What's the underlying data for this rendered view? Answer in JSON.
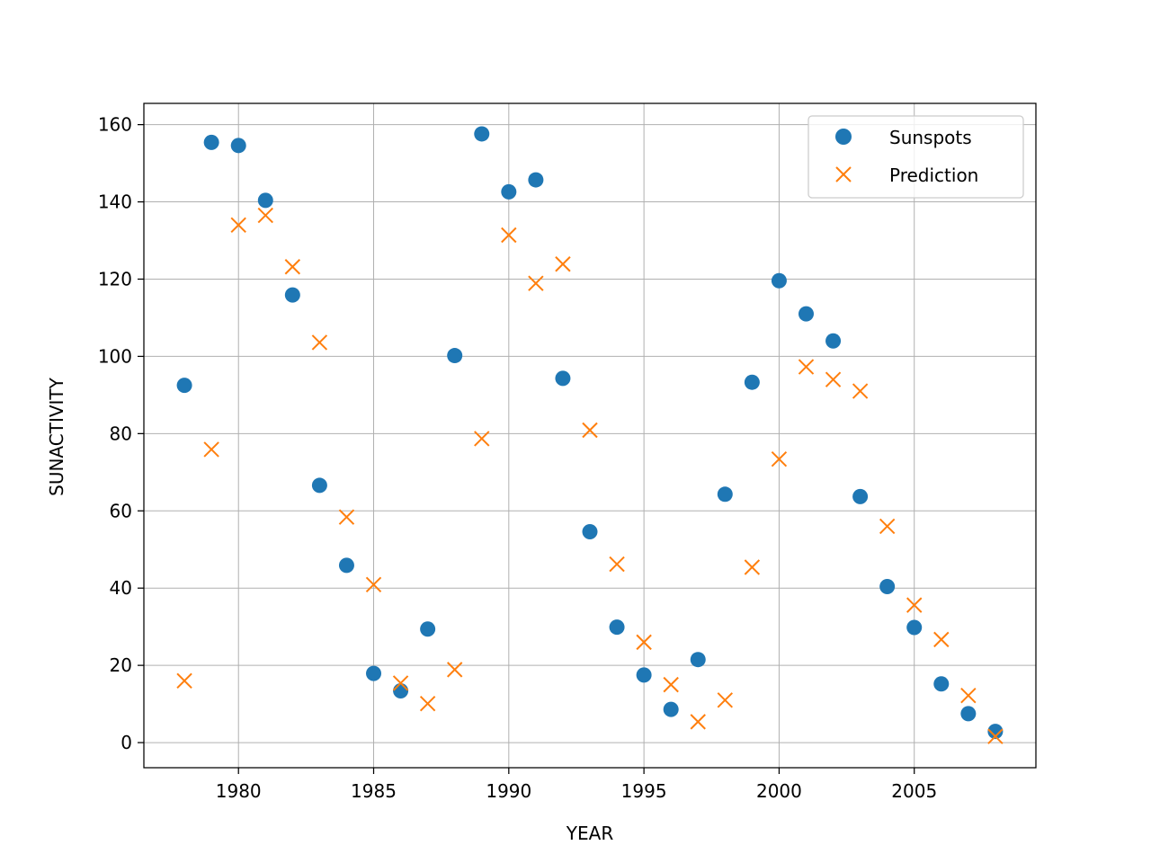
{
  "chart_data": {
    "type": "scatter",
    "title": "",
    "xlabel": "YEAR",
    "ylabel": "SUNACTIVITY",
    "xlim": [
      1976.5,
      2009.5
    ],
    "ylim": [
      -6.5,
      165.5
    ],
    "xticks": [
      1980,
      1985,
      1990,
      1995,
      2000,
      2005
    ],
    "yticks": [
      0,
      20,
      40,
      60,
      80,
      100,
      120,
      140,
      160
    ],
    "grid": true,
    "legend_position": "top-right",
    "x": [
      1978,
      1979,
      1980,
      1981,
      1982,
      1983,
      1984,
      1985,
      1986,
      1987,
      1988,
      1989,
      1990,
      1991,
      1992,
      1993,
      1994,
      1995,
      1996,
      1997,
      1998,
      1999,
      2000,
      2001,
      2002,
      2003,
      2004,
      2005,
      2006,
      2007,
      2008
    ],
    "series": [
      {
        "name": "Sunspots",
        "marker": "circle",
        "color": "#1f77b4",
        "values": [
          92.5,
          155.4,
          154.6,
          140.4,
          115.9,
          66.6,
          45.9,
          17.9,
          13.4,
          29.4,
          100.2,
          157.6,
          142.6,
          145.7,
          94.3,
          54.6,
          29.9,
          17.5,
          8.6,
          21.5,
          64.3,
          93.3,
          119.6,
          111.0,
          104.0,
          63.7,
          40.4,
          29.8,
          15.2,
          7.5,
          2.9
        ]
      },
      {
        "name": "Prediction",
        "marker": "x",
        "color": "#ff7f0e",
        "values": [
          16.0,
          75.9,
          134.0,
          136.5,
          123.2,
          103.6,
          58.4,
          40.9,
          15.4,
          10.1,
          18.9,
          78.7,
          131.4,
          118.9,
          123.9,
          80.9,
          46.2,
          26.0,
          15.0,
          5.4,
          11.0,
          45.4,
          73.4,
          97.3,
          94.0,
          91.0,
          56.0,
          35.6,
          26.7,
          12.2,
          1.6
        ]
      }
    ]
  }
}
